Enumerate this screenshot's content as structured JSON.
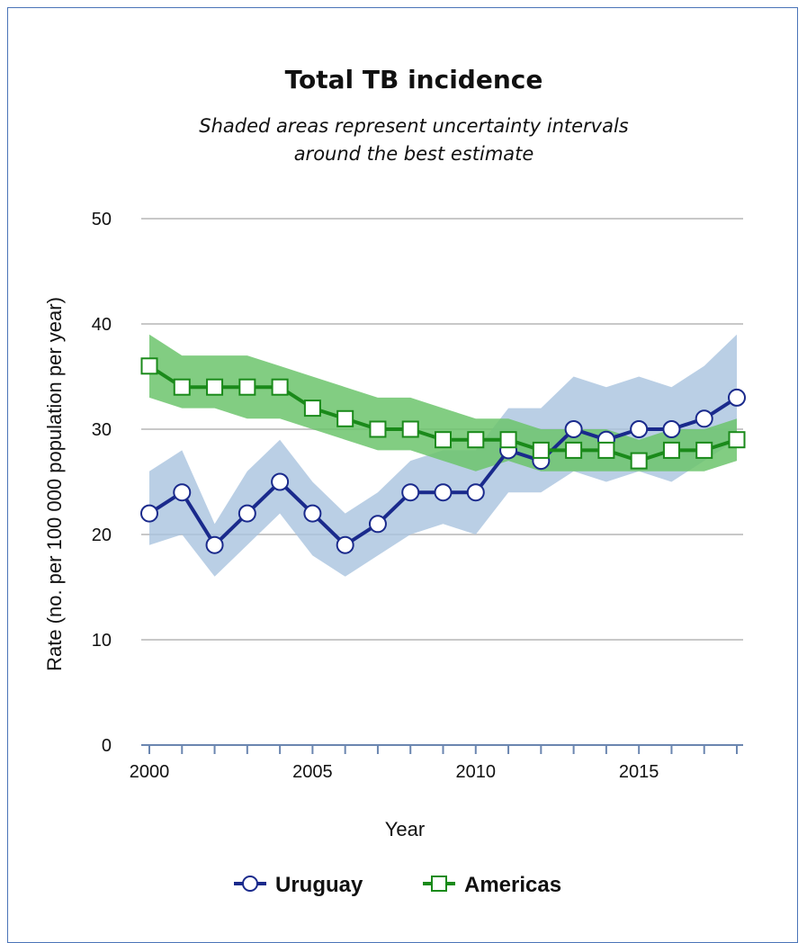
{
  "chart_data": {
    "type": "line",
    "title": "Total TB incidence",
    "subtitle_lines": [
      "Shaded areas represent uncertainty intervals",
      "around the best estimate"
    ],
    "xlabel": "Year",
    "ylabel": "Rate (no. per 100 000 population per year)",
    "xlim": [
      2000,
      2018
    ],
    "ylim": [
      0,
      50
    ],
    "x_ticks": [
      2000,
      2005,
      2010,
      2015
    ],
    "y_ticks": [
      0,
      10,
      20,
      30,
      40,
      50
    ],
    "grid": "horizontal",
    "legend_position": "bottom",
    "x": [
      2000,
      2001,
      2002,
      2003,
      2004,
      2005,
      2006,
      2007,
      2008,
      2009,
      2010,
      2011,
      2012,
      2013,
      2014,
      2015,
      2016,
      2017,
      2018
    ],
    "series": [
      {
        "name": "Uruguay",
        "marker": "circle",
        "color": "#1a2a8c",
        "band_color": "#a9c3df",
        "values": [
          22,
          24,
          19,
          22,
          25,
          22,
          19,
          21,
          24,
          24,
          24,
          28,
          27,
          30,
          29,
          30,
          30,
          31,
          33
        ],
        "lower": [
          19,
          20,
          16,
          19,
          22,
          18,
          16,
          18,
          20,
          21,
          20,
          24,
          24,
          26,
          25,
          26,
          25,
          27,
          29
        ],
        "upper": [
          26,
          28,
          21,
          26,
          29,
          25,
          22,
          24,
          27,
          28,
          28,
          32,
          32,
          35,
          34,
          35,
          34,
          36,
          39
        ]
      },
      {
        "name": "Americas",
        "marker": "square",
        "color": "#1a8a1a",
        "band_color": "#6cc46c",
        "values": [
          36,
          34,
          34,
          34,
          34,
          32,
          31,
          30,
          30,
          29,
          29,
          29,
          28,
          28,
          28,
          27,
          28,
          28,
          29
        ],
        "lower": [
          33,
          32,
          32,
          31,
          31,
          30,
          29,
          28,
          28,
          27,
          26,
          27,
          26,
          26,
          26,
          26,
          26,
          26,
          27
        ],
        "upper": [
          39,
          37,
          37,
          37,
          36,
          35,
          34,
          33,
          33,
          32,
          31,
          31,
          30,
          30,
          30,
          29,
          30,
          30,
          31
        ]
      }
    ]
  }
}
